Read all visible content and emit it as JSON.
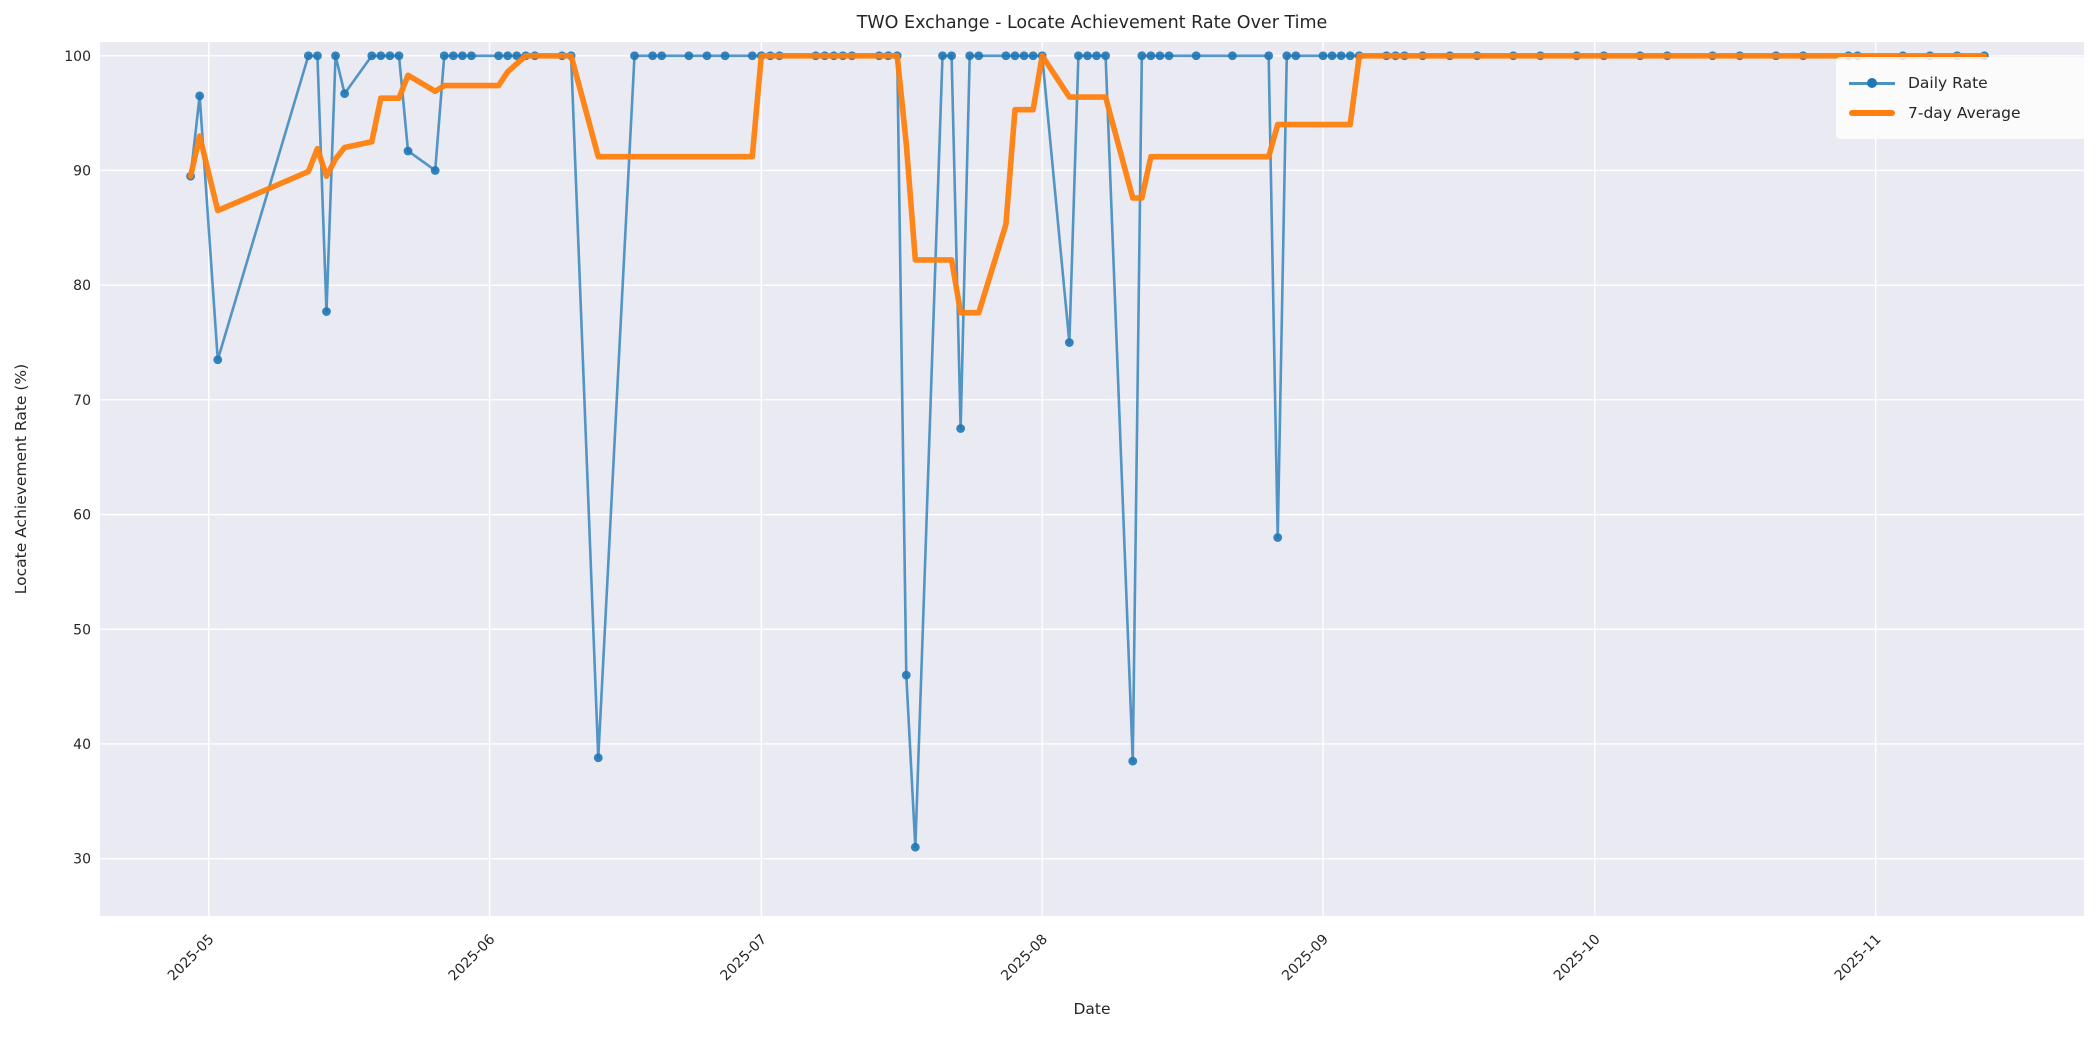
{
  "chart_data": {
    "type": "line",
    "title": "TWO Exchange - Locate Achievement Rate Over Time",
    "xlabel": "Date",
    "ylabel": "Locate Achievement Rate (%)",
    "grid": true,
    "legend_position": "upper right",
    "background_color": "#eaeaf2",
    "grid_color": "#ffffff",
    "text_color": "#262626",
    "x_range": [
      "2025-04-19",
      "2025-11-24"
    ],
    "y_range": [
      25.0,
      101.2
    ],
    "x_ticks": [
      {
        "label": "2025-05",
        "date": "2025-05-01"
      },
      {
        "label": "2025-06",
        "date": "2025-06-01"
      },
      {
        "label": "2025-07",
        "date": "2025-07-01"
      },
      {
        "label": "2025-08",
        "date": "2025-08-01"
      },
      {
        "label": "2025-09",
        "date": "2025-09-01"
      },
      {
        "label": "2025-10",
        "date": "2025-10-01"
      },
      {
        "label": "2025-11",
        "date": "2025-11-01"
      }
    ],
    "y_ticks": [
      30,
      40,
      50,
      60,
      70,
      80,
      90,
      100
    ],
    "series": [
      {
        "name": "Daily Rate",
        "color": "#1f77b4",
        "marker": "circle",
        "points": [
          [
            "2025-04-29",
            89.5
          ],
          [
            "2025-04-30",
            96.5
          ],
          [
            "2025-05-02",
            73.5
          ],
          [
            "2025-05-12",
            100
          ],
          [
            "2025-05-13",
            100
          ],
          [
            "2025-05-14",
            77.7
          ],
          [
            "2025-05-15",
            100
          ],
          [
            "2025-05-16",
            96.7
          ],
          [
            "2025-05-19",
            100
          ],
          [
            "2025-05-20",
            100
          ],
          [
            "2025-05-21",
            100
          ],
          [
            "2025-05-22",
            100
          ],
          [
            "2025-05-23",
            91.7
          ],
          [
            "2025-05-26",
            90.0
          ],
          [
            "2025-05-27",
            100
          ],
          [
            "2025-05-28",
            100
          ],
          [
            "2025-05-29",
            100
          ],
          [
            "2025-05-30",
            100
          ],
          [
            "2025-06-02",
            100
          ],
          [
            "2025-06-03",
            100
          ],
          [
            "2025-06-04",
            100
          ],
          [
            "2025-06-05",
            100
          ],
          [
            "2025-06-06",
            100
          ],
          [
            "2025-06-09",
            100
          ],
          [
            "2025-06-10",
            100
          ],
          [
            "2025-06-13",
            38.8
          ],
          [
            "2025-06-17",
            100
          ],
          [
            "2025-06-19",
            100
          ],
          [
            "2025-06-20",
            100
          ],
          [
            "2025-06-23",
            100
          ],
          [
            "2025-06-25",
            100
          ],
          [
            "2025-06-27",
            100
          ],
          [
            "2025-06-30",
            100
          ],
          [
            "2025-07-01",
            100
          ],
          [
            "2025-07-02",
            100
          ],
          [
            "2025-07-03",
            100
          ],
          [
            "2025-07-07",
            100
          ],
          [
            "2025-07-08",
            100
          ],
          [
            "2025-07-09",
            100
          ],
          [
            "2025-07-10",
            100
          ],
          [
            "2025-07-11",
            100
          ],
          [
            "2025-07-14",
            100
          ],
          [
            "2025-07-15",
            100
          ],
          [
            "2025-07-16",
            100
          ],
          [
            "2025-07-17",
            46.0
          ],
          [
            "2025-07-18",
            31.0
          ],
          [
            "2025-07-21",
            100
          ],
          [
            "2025-07-22",
            100
          ],
          [
            "2025-07-23",
            67.5
          ],
          [
            "2025-07-24",
            100
          ],
          [
            "2025-07-25",
            100
          ],
          [
            "2025-07-28",
            100
          ],
          [
            "2025-07-29",
            100
          ],
          [
            "2025-07-30",
            100
          ],
          [
            "2025-07-31",
            100
          ],
          [
            "2025-08-01",
            100
          ],
          [
            "2025-08-04",
            75.0
          ],
          [
            "2025-08-05",
            100
          ],
          [
            "2025-08-06",
            100
          ],
          [
            "2025-08-07",
            100
          ],
          [
            "2025-08-08",
            100
          ],
          [
            "2025-08-11",
            38.5
          ],
          [
            "2025-08-12",
            100
          ],
          [
            "2025-08-13",
            100
          ],
          [
            "2025-08-14",
            100
          ],
          [
            "2025-08-15",
            100
          ],
          [
            "2025-08-18",
            100
          ],
          [
            "2025-08-22",
            100
          ],
          [
            "2025-08-26",
            100
          ],
          [
            "2025-08-27",
            58.0
          ],
          [
            "2025-08-28",
            100
          ],
          [
            "2025-08-29",
            100
          ],
          [
            "2025-09-01",
            100
          ],
          [
            "2025-09-02",
            100
          ],
          [
            "2025-09-03",
            100
          ],
          [
            "2025-09-04",
            100
          ],
          [
            "2025-09-05",
            100
          ],
          [
            "2025-09-08",
            100
          ],
          [
            "2025-09-09",
            100
          ],
          [
            "2025-09-10",
            100
          ],
          [
            "2025-09-12",
            100
          ],
          [
            "2025-09-15",
            100
          ],
          [
            "2025-09-18",
            100
          ],
          [
            "2025-09-22",
            100
          ],
          [
            "2025-09-25",
            100
          ],
          [
            "2025-09-29",
            100
          ],
          [
            "2025-10-02",
            100
          ],
          [
            "2025-10-06",
            100
          ],
          [
            "2025-10-09",
            100
          ],
          [
            "2025-10-14",
            100
          ],
          [
            "2025-10-17",
            100
          ],
          [
            "2025-10-21",
            100
          ],
          [
            "2025-10-24",
            100
          ],
          [
            "2025-10-29",
            100
          ],
          [
            "2025-10-30",
            100
          ],
          [
            "2025-11-04",
            100
          ],
          [
            "2025-11-07",
            100
          ],
          [
            "2025-11-10",
            100
          ],
          [
            "2025-11-13",
            100
          ]
        ]
      },
      {
        "name": "7-day Average",
        "color": "#ff7f0e",
        "marker": "none",
        "points": [
          [
            "2025-04-29",
            89.5
          ],
          [
            "2025-04-30",
            93.0
          ],
          [
            "2025-05-02",
            86.5
          ],
          [
            "2025-05-12",
            89.9
          ],
          [
            "2025-05-13",
            91.9
          ],
          [
            "2025-05-14",
            89.5
          ],
          [
            "2025-05-15",
            91.0
          ],
          [
            "2025-05-16",
            92.0
          ],
          [
            "2025-05-19",
            92.5
          ],
          [
            "2025-05-20",
            96.3
          ],
          [
            "2025-05-22",
            96.3
          ],
          [
            "2025-05-23",
            98.3
          ],
          [
            "2025-05-26",
            96.9
          ],
          [
            "2025-05-27",
            97.4
          ],
          [
            "2025-06-02",
            97.4
          ],
          [
            "2025-06-03",
            98.6
          ],
          [
            "2025-06-05",
            100
          ],
          [
            "2025-06-10",
            100
          ],
          [
            "2025-06-13",
            91.2
          ],
          [
            "2025-06-30",
            91.2
          ],
          [
            "2025-07-01",
            100
          ],
          [
            "2025-07-16",
            100
          ],
          [
            "2025-07-17",
            92.3
          ],
          [
            "2025-07-18",
            82.2
          ],
          [
            "2025-07-22",
            82.2
          ],
          [
            "2025-07-23",
            77.6
          ],
          [
            "2025-07-25",
            77.6
          ],
          [
            "2025-07-28",
            85.3
          ],
          [
            "2025-07-29",
            95.3
          ],
          [
            "2025-07-31",
            95.3
          ],
          [
            "2025-08-01",
            100
          ],
          [
            "2025-08-04",
            96.4
          ],
          [
            "2025-08-08",
            96.4
          ],
          [
            "2025-08-11",
            87.6
          ],
          [
            "2025-08-12",
            87.6
          ],
          [
            "2025-08-13",
            91.2
          ],
          [
            "2025-08-26",
            91.2
          ],
          [
            "2025-08-27",
            94.0
          ],
          [
            "2025-09-04",
            94.0
          ],
          [
            "2025-09-05",
            100
          ],
          [
            "2025-11-13",
            100
          ]
        ]
      }
    ]
  }
}
